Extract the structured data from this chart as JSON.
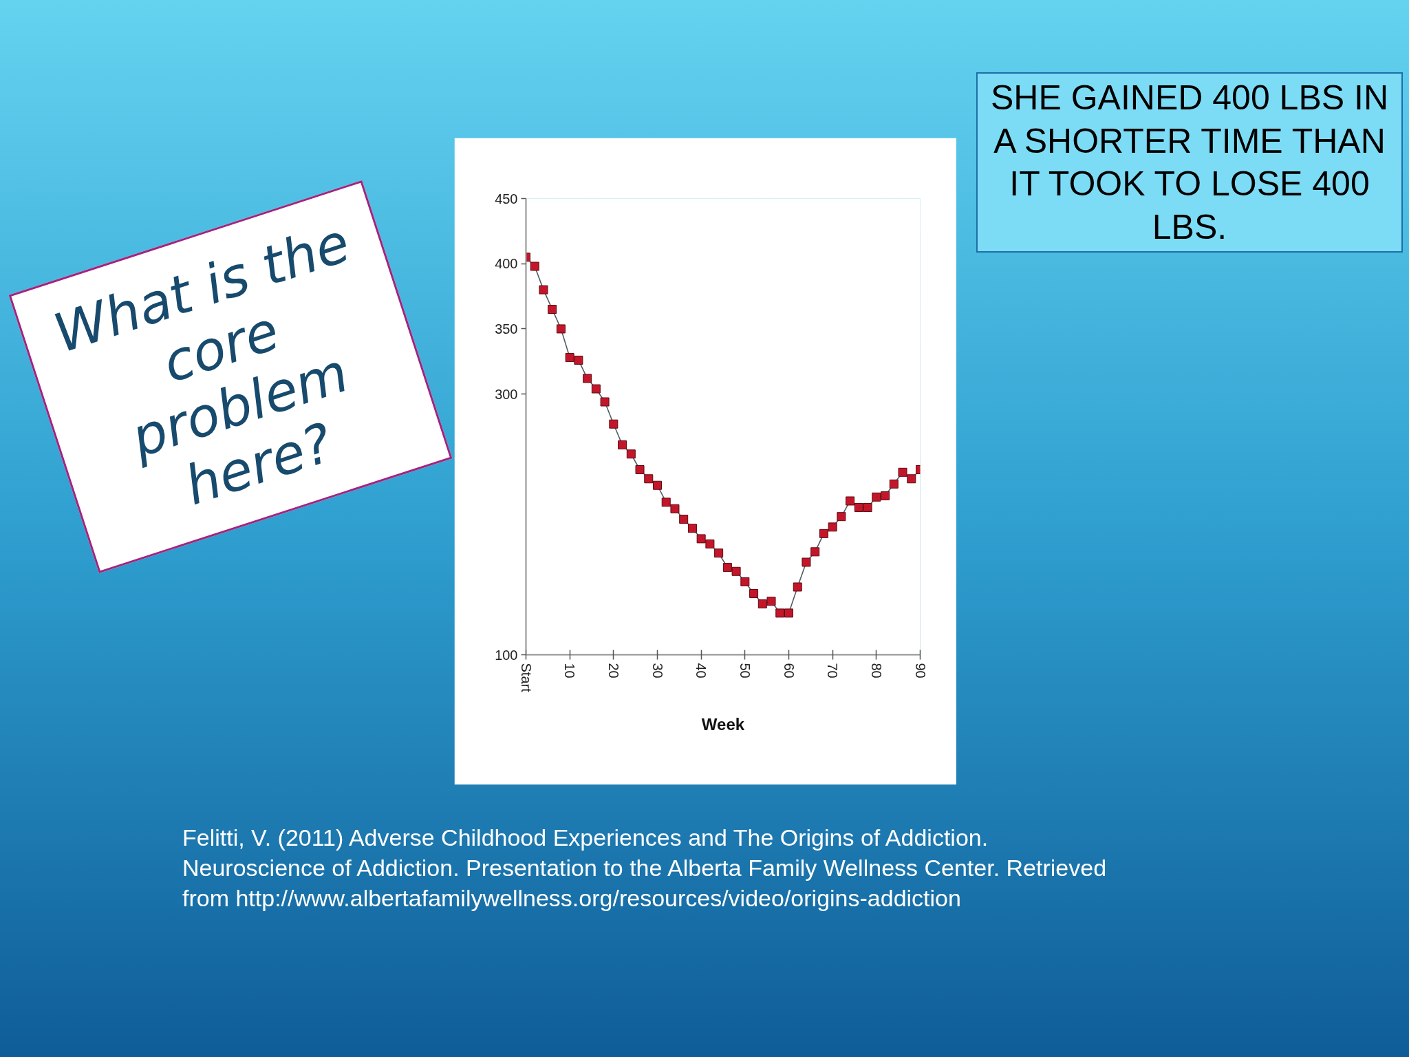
{
  "chart_data": {
    "type": "line",
    "xlabel": "Week",
    "x": [
      0,
      2,
      4,
      6,
      8,
      10,
      12,
      14,
      16,
      18,
      20,
      22,
      24,
      26,
      28,
      30,
      32,
      34,
      36,
      38,
      40,
      42,
      44,
      46,
      48,
      50,
      52,
      54,
      56,
      58,
      60,
      62,
      64,
      66,
      68,
      70,
      72,
      74,
      76,
      78,
      80,
      82,
      84,
      86,
      88,
      90
    ],
    "series": [
      {
        "color": "#c4162a",
        "values": [
          405,
          398,
          380,
          365,
          350,
          328,
          326,
          312,
          304,
          294,
          277,
          261,
          254,
          242,
          235,
          230,
          217,
          212,
          204,
          197,
          189,
          185,
          178,
          167,
          164,
          156,
          147,
          139,
          141,
          132,
          132,
          152,
          171,
          179,
          193,
          198,
          206,
          218,
          213,
          213,
          221,
          222,
          231,
          240,
          235,
          242
        ]
      }
    ],
    "xlim": [
      0,
      90
    ],
    "ylim": [
      100,
      450
    ],
    "xticks": [
      {
        "value": 0,
        "label": "Start"
      },
      10,
      20,
      30,
      40,
      50,
      60,
      70,
      80,
      90
    ],
    "yticks": [
      100,
      300,
      350,
      400,
      450
    ],
    "marker": "square",
    "annotations": [
      "What is the core problem here?",
      "SHE GAINED 400 LBS IN A SHORTER TIME THAN IT TOOK TO LOSE 400 LBS.",
      "Felitti, V. (2011) Adverse Childhood Experiences and The Origins of Addiction.\nNeuroscience of Addiction. Presentation to the Alberta Family Wellness Center. Retrieved\nfrom http://www.albertafamilywellness.org/resources/video/origins-addiction"
    ]
  }
}
